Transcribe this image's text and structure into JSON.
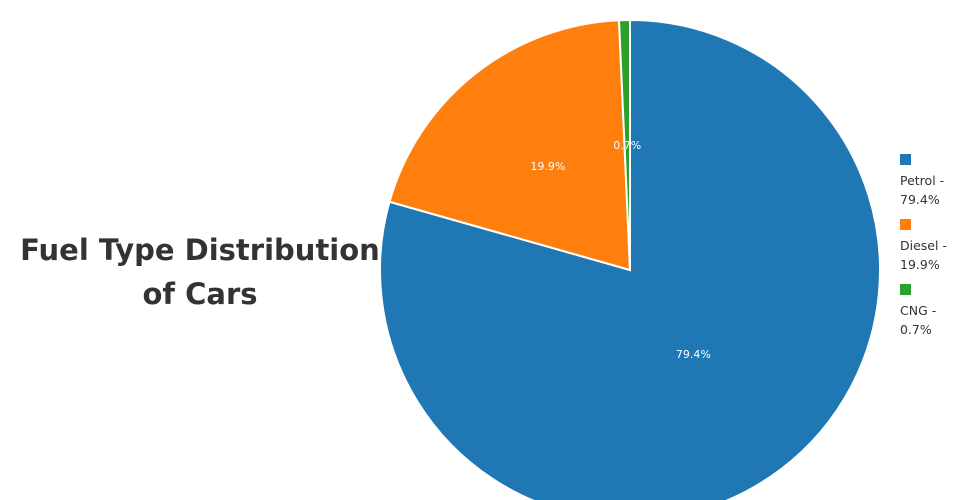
{
  "chart_data": {
    "type": "pie",
    "title": "Fuel Type Distribution of Cars",
    "categories": [
      "Petrol",
      "Diesel",
      "CNG"
    ],
    "values": [
      79.4,
      19.9,
      0.7
    ],
    "slice_labels": [
      "79.4%",
      "19.9%",
      "0.7%"
    ],
    "legend": {
      "placement": "right",
      "entries": [
        "Petrol - 79.4%",
        "Diesel - 19.9%",
        "CNG - 0.7%"
      ]
    },
    "colors": [
      "#1f77b4",
      "#ff7f0e",
      "#2ca02c"
    ]
  }
}
